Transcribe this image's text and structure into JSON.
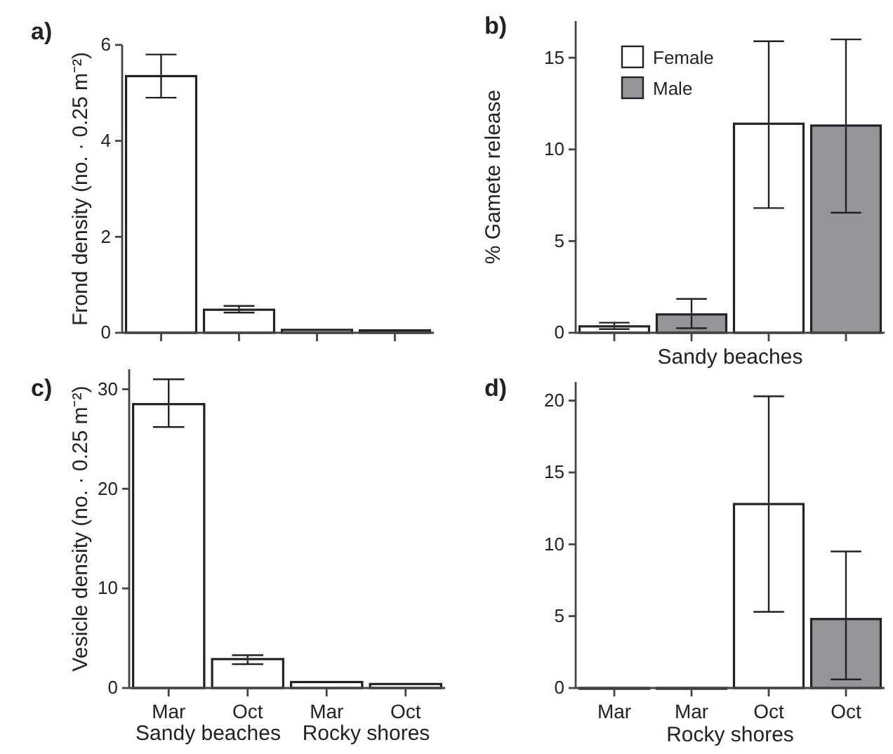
{
  "chart_data": [
    {
      "type": "bar",
      "title": "a)",
      "ylabel": "Frond density (no. · 0.25 m⁻²)",
      "categories": [
        null,
        null,
        null,
        null
      ],
      "values": [
        5.35,
        0.48,
        0.06,
        0.05
      ],
      "errors": [
        [
          4.9,
          5.8
        ],
        [
          0.42,
          0.56
        ],
        null,
        null
      ],
      "color": "#ffffff",
      "ylim": [
        0,
        6
      ],
      "yticks": [
        0,
        2,
        4,
        6
      ],
      "tick_labels": "y",
      "grid": false,
      "legend": false
    },
    {
      "type": "bar",
      "title": "b)",
      "ylabel": "% Gamete release",
      "xlabel": "Sandy beaches",
      "categories": [
        null,
        null,
        null,
        null
      ],
      "series": [
        {
          "name": "Female",
          "color": "#ffffff",
          "values": [
            0.35,
            null,
            11.4,
            null
          ],
          "errors": [
            [
              0.2,
              0.55
            ],
            null,
            [
              6.8,
              15.9
            ],
            null
          ]
        },
        {
          "name": "Male",
          "color": "#939598",
          "values": [
            null,
            1.0,
            null,
            11.3
          ],
          "errors": [
            null,
            [
              0.25,
              1.85
            ],
            null,
            [
              6.55,
              16.0
            ]
          ]
        }
      ],
      "ylim": [
        0,
        17
      ],
      "yticks": [
        0,
        5,
        10,
        15
      ],
      "tick_labels": "y",
      "grid": false,
      "legend": "top left"
    },
    {
      "type": "bar",
      "title": "c)",
      "ylabel": "Vesicle density (no. · 0.25 m⁻²)",
      "categories": [
        "Mar",
        "Oct",
        "Mar",
        "Oct"
      ],
      "values": [
        28.5,
        2.9,
        0.6,
        0.4
      ],
      "errors": [
        [
          26.2,
          31.0
        ],
        [
          2.4,
          3.3
        ],
        null,
        null
      ],
      "color": "#ffffff",
      "annotations": [
        "Sandy beaches",
        "Rocky shores"
      ],
      "ylim": [
        0,
        32
      ],
      "yticks": [
        0,
        10,
        20,
        30
      ],
      "grid": false,
      "legend": false
    },
    {
      "type": "bar",
      "title": "d)",
      "xlabel": "Rocky shores",
      "categories": [
        "Mar",
        "Mar",
        "Oct",
        "Oct"
      ],
      "values": [
        0,
        0,
        12.8,
        4.8
      ],
      "errors": [
        null,
        null,
        [
          5.3,
          20.3
        ],
        [
          0.6,
          9.5
        ]
      ],
      "colors": [
        "#ffffff",
        "#939598",
        "#ffffff",
        "#939598"
      ],
      "ylim": [
        0,
        21.3
      ],
      "yticks": [
        0,
        5,
        10,
        15,
        20
      ],
      "grid": false,
      "legend": false
    }
  ]
}
